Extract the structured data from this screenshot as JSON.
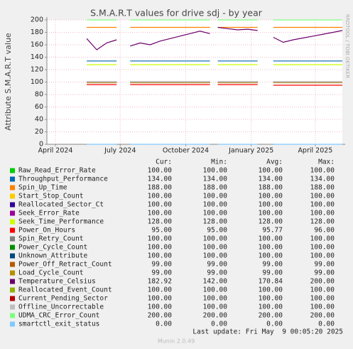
{
  "chart_data": {
    "type": "line",
    "title": "S.M.A.R.T values for drive sdj - by year",
    "y_label": "Attribute S.M.A.R.T value",
    "side_label": "RRDTOOL / TOBI OETIKER",
    "xlim": [
      "2024-03-20",
      "2025-05-09"
    ],
    "xticks": [
      {
        "value": "2024-04-01",
        "label": "April 2024"
      },
      {
        "value": "2024-07-01",
        "label": "July 2024"
      },
      {
        "value": "2024-10-01",
        "label": "October 2024"
      },
      {
        "value": "2025-01-01",
        "label": "January 2025"
      },
      {
        "value": "2025-04-01",
        "label": "April 2025"
      }
    ],
    "ylim": [
      0,
      200
    ],
    "yticks": [
      0,
      20,
      40,
      60,
      80,
      100,
      120,
      140,
      160,
      180,
      200
    ],
    "grid": true,
    "columns": [
      "Cur:",
      "Min:",
      "Avg:",
      "Max:"
    ],
    "x": [
      "2024-05-15",
      "2024-05-29",
      "2024-06-12",
      "2024-06-26",
      "2024-07-05",
      "2024-07-15",
      "2024-07-29",
      "2024-08-12",
      "2024-08-26",
      "2024-09-09",
      "2024-09-23",
      "2024-10-07",
      "2024-10-21",
      "2024-11-04",
      "2024-11-09",
      "2024-11-15",
      "2024-11-29",
      "2024-12-13",
      "2024-12-27",
      "2025-01-10",
      "2025-01-24",
      "2025-02-01",
      "2025-02-15",
      "2025-03-01",
      "2025-03-15",
      "2025-03-29",
      "2025-04-12",
      "2025-04-26",
      "2025-05-09"
    ],
    "series": [
      {
        "name": "Raw_Read_Error_Rate",
        "color": "#00cc00",
        "stats": [
          "100.00",
          "100.00",
          "100.00",
          "100.00"
        ],
        "values": [
          100,
          100,
          100,
          100,
          null,
          100,
          100,
          100,
          100,
          100,
          100,
          100,
          100,
          100,
          null,
          100,
          100,
          100,
          100,
          100,
          null,
          100,
          100,
          100,
          100,
          100,
          100,
          100,
          100
        ]
      },
      {
        "name": "Throughput_Performance",
        "color": "#0066b3",
        "stats": [
          "134.00",
          "134.00",
          "134.00",
          "134.00"
        ],
        "values": [
          134,
          134,
          134,
          134,
          null,
          134,
          134,
          134,
          134,
          134,
          134,
          134,
          134,
          134,
          null,
          134,
          134,
          134,
          134,
          134,
          null,
          134,
          134,
          134,
          134,
          134,
          134,
          134,
          134
        ]
      },
      {
        "name": "Spin_Up_Time",
        "color": "#ff8000",
        "stats": [
          "188.00",
          "188.00",
          "188.00",
          "188.00"
        ],
        "values": [
          188,
          188,
          188,
          188,
          null,
          188,
          188,
          188,
          188,
          188,
          188,
          188,
          188,
          188,
          null,
          188,
          188,
          188,
          188,
          188,
          null,
          188,
          188,
          188,
          188,
          188,
          188,
          188,
          188
        ]
      },
      {
        "name": "Start_Stop_Count",
        "color": "#ffcc00",
        "stats": [
          "100.00",
          "100.00",
          "100.00",
          "100.00"
        ],
        "values": [
          100,
          100,
          100,
          100,
          null,
          100,
          100,
          100,
          100,
          100,
          100,
          100,
          100,
          100,
          null,
          100,
          100,
          100,
          100,
          100,
          null,
          100,
          100,
          100,
          100,
          100,
          100,
          100,
          100
        ]
      },
      {
        "name": "Reallocated_Sector_Ct",
        "color": "#330099",
        "stats": [
          "100.00",
          "100.00",
          "100.00",
          "100.00"
        ],
        "values": [
          100,
          100,
          100,
          100,
          null,
          100,
          100,
          100,
          100,
          100,
          100,
          100,
          100,
          100,
          null,
          100,
          100,
          100,
          100,
          100,
          null,
          100,
          100,
          100,
          100,
          100,
          100,
          100,
          100
        ]
      },
      {
        "name": "Seek_Error_Rate",
        "color": "#990099",
        "stats": [
          "100.00",
          "100.00",
          "100.00",
          "100.00"
        ],
        "values": [
          100,
          100,
          100,
          100,
          null,
          100,
          100,
          100,
          100,
          100,
          100,
          100,
          100,
          100,
          null,
          100,
          100,
          100,
          100,
          100,
          null,
          100,
          100,
          100,
          100,
          100,
          100,
          100,
          100
        ]
      },
      {
        "name": "Seek_Time_Performance",
        "color": "#ccff00",
        "stats": [
          "128.00",
          "128.00",
          "128.00",
          "128.00"
        ],
        "values": [
          128,
          128,
          128,
          128,
          null,
          128,
          128,
          128,
          128,
          128,
          128,
          128,
          128,
          128,
          null,
          128,
          128,
          128,
          128,
          128,
          null,
          128,
          128,
          128,
          128,
          128,
          128,
          128,
          128
        ]
      },
      {
        "name": "Power_On_Hours",
        "color": "#ff0000",
        "stats": [
          "95.00",
          "95.00",
          "95.77",
          "96.00"
        ],
        "values": [
          96,
          96,
          96,
          96,
          null,
          96,
          96,
          96,
          96,
          96,
          96,
          96,
          96,
          96,
          null,
          96,
          96,
          96,
          96,
          96,
          null,
          95,
          95,
          95,
          95,
          95,
          95,
          95,
          95
        ]
      },
      {
        "name": "Spin_Retry_Count",
        "color": "#808080",
        "stats": [
          "100.00",
          "100.00",
          "100.00",
          "100.00"
        ],
        "values": [
          100,
          100,
          100,
          100,
          null,
          100,
          100,
          100,
          100,
          100,
          100,
          100,
          100,
          100,
          null,
          100,
          100,
          100,
          100,
          100,
          null,
          100,
          100,
          100,
          100,
          100,
          100,
          100,
          100
        ]
      },
      {
        "name": "Power_Cycle_Count",
        "color": "#008f00",
        "stats": [
          "100.00",
          "100.00",
          "100.00",
          "100.00"
        ],
        "values": [
          100,
          100,
          100,
          100,
          null,
          100,
          100,
          100,
          100,
          100,
          100,
          100,
          100,
          100,
          null,
          100,
          100,
          100,
          100,
          100,
          null,
          100,
          100,
          100,
          100,
          100,
          100,
          100,
          100
        ]
      },
      {
        "name": "Unknown_Attribute",
        "color": "#00487d",
        "stats": [
          "100.00",
          "100.00",
          "100.00",
          "100.00"
        ],
        "values": [
          100,
          100,
          100,
          100,
          null,
          100,
          100,
          100,
          100,
          100,
          100,
          100,
          100,
          100,
          null,
          100,
          100,
          100,
          100,
          100,
          null,
          100,
          100,
          100,
          100,
          100,
          100,
          100,
          100
        ]
      },
      {
        "name": "Power_Off_Retract_Count",
        "color": "#b35a00",
        "stats": [
          "99.00",
          "99.00",
          "99.00",
          "99.00"
        ],
        "values": [
          99,
          99,
          99,
          99,
          null,
          99,
          99,
          99,
          99,
          99,
          99,
          99,
          99,
          99,
          null,
          99,
          99,
          99,
          99,
          99,
          null,
          99,
          99,
          99,
          99,
          99,
          99,
          99,
          99
        ]
      },
      {
        "name": "Load_Cycle_Count",
        "color": "#b38f00",
        "stats": [
          "99.00",
          "99.00",
          "99.00",
          "99.00"
        ],
        "values": [
          99,
          99,
          99,
          99,
          null,
          99,
          99,
          99,
          99,
          99,
          99,
          99,
          99,
          99,
          null,
          99,
          99,
          99,
          99,
          99,
          null,
          99,
          99,
          99,
          99,
          99,
          99,
          99,
          99
        ]
      },
      {
        "name": "Temperature_Celsius",
        "color": "#6b006b",
        "stats": [
          "182.92",
          "142.00",
          "170.84",
          "200.00"
        ],
        "values": [
          170,
          152,
          163,
          168,
          null,
          158,
          163,
          160,
          166,
          170,
          174,
          178,
          182,
          178,
          null,
          188,
          186,
          184,
          185,
          183,
          null,
          172,
          164,
          168,
          171,
          174,
          177,
          180,
          182.92
        ]
      },
      {
        "name": "Reallocated_Event_Count",
        "color": "#8fb300",
        "stats": [
          "100.00",
          "100.00",
          "100.00",
          "100.00"
        ],
        "values": [
          100,
          100,
          100,
          100,
          null,
          100,
          100,
          100,
          100,
          100,
          100,
          100,
          100,
          100,
          null,
          100,
          100,
          100,
          100,
          100,
          null,
          100,
          100,
          100,
          100,
          100,
          100,
          100,
          100
        ]
      },
      {
        "name": "Current_Pending_Sector",
        "color": "#b30000",
        "stats": [
          "100.00",
          "100.00",
          "100.00",
          "100.00"
        ],
        "values": [
          100,
          100,
          100,
          100,
          null,
          100,
          100,
          100,
          100,
          100,
          100,
          100,
          100,
          100,
          null,
          100,
          100,
          100,
          100,
          100,
          null,
          100,
          100,
          100,
          100,
          100,
          100,
          100,
          100
        ]
      },
      {
        "name": "Offline_Uncorrectable",
        "color": "#bebebe",
        "stats": [
          "100.00",
          "100.00",
          "100.00",
          "100.00"
        ],
        "values": [
          100,
          100,
          100,
          100,
          null,
          100,
          100,
          100,
          100,
          100,
          100,
          100,
          100,
          100,
          null,
          100,
          100,
          100,
          100,
          100,
          null,
          100,
          100,
          100,
          100,
          100,
          100,
          100,
          100
        ]
      },
      {
        "name": "UDMA_CRC_Error_Count",
        "color": "#80ff80",
        "stats": [
          "200.00",
          "200.00",
          "200.00",
          "200.00"
        ],
        "values": [
          200,
          200,
          200,
          200,
          null,
          200,
          200,
          200,
          200,
          200,
          200,
          200,
          200,
          200,
          null,
          200,
          200,
          200,
          200,
          200,
          null,
          200,
          200,
          200,
          200,
          200,
          200,
          200,
          200
        ]
      },
      {
        "name": "smartctl_exit_status",
        "color": "#80c9ff",
        "stats": [
          "0.00",
          "0.00",
          "0.00",
          "0.00"
        ],
        "values": [
          0,
          0,
          0,
          0,
          null,
          0,
          0,
          0,
          0,
          0,
          0,
          0,
          0,
          0,
          null,
          0,
          0,
          0,
          0,
          0,
          null,
          0,
          0,
          0,
          0,
          0,
          0,
          0,
          0
        ]
      }
    ],
    "footer": "Last update: Fri May  9 00:05:20 2025",
    "version": "Munin 2.0.49"
  }
}
